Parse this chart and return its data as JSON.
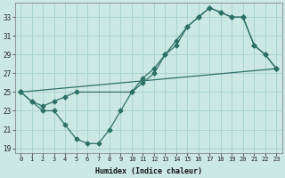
{
  "xlabel": "Humidex (Indice chaleur)",
  "bg_color": "#cce8e4",
  "grid_color": "#aad4cf",
  "line_color": "#2d7068",
  "xlim": [
    -0.5,
    23.5
  ],
  "ylim": [
    18.5,
    34.5
  ],
  "yticks": [
    19,
    21,
    23,
    25,
    27,
    29,
    31,
    33
  ],
  "xticks": [
    0,
    1,
    2,
    3,
    4,
    5,
    6,
    7,
    8,
    9,
    10,
    11,
    12,
    13,
    14,
    15,
    16,
    17,
    18,
    19,
    20,
    21,
    22,
    23
  ],
  "line1_x": [
    0,
    1,
    2,
    3,
    4,
    5,
    6,
    7,
    8,
    9,
    10,
    11,
    12,
    13,
    14,
    15,
    16,
    17,
    18,
    19,
    20,
    21,
    22,
    23
  ],
  "line1_y": [
    25,
    24,
    23,
    23,
    21.5,
    20,
    19.5,
    19.5,
    21,
    23,
    25,
    26.5,
    27.5,
    29,
    30.5,
    32,
    33,
    34,
    33.5,
    33,
    33,
    30,
    29,
    27.5
  ],
  "line2_x": [
    0,
    1,
    2,
    3,
    4,
    5,
    10,
    11,
    12,
    13,
    14,
    15,
    16,
    17,
    18,
    19,
    20,
    21,
    22,
    23
  ],
  "line2_y": [
    25,
    24,
    23.5,
    24,
    24.5,
    25,
    25,
    26,
    27,
    29,
    30,
    32,
    33,
    34,
    33.5,
    33,
    33,
    30,
    29,
    27.5
  ],
  "line3_x": [
    0,
    23
  ],
  "line3_y": [
    25,
    27.5
  ]
}
